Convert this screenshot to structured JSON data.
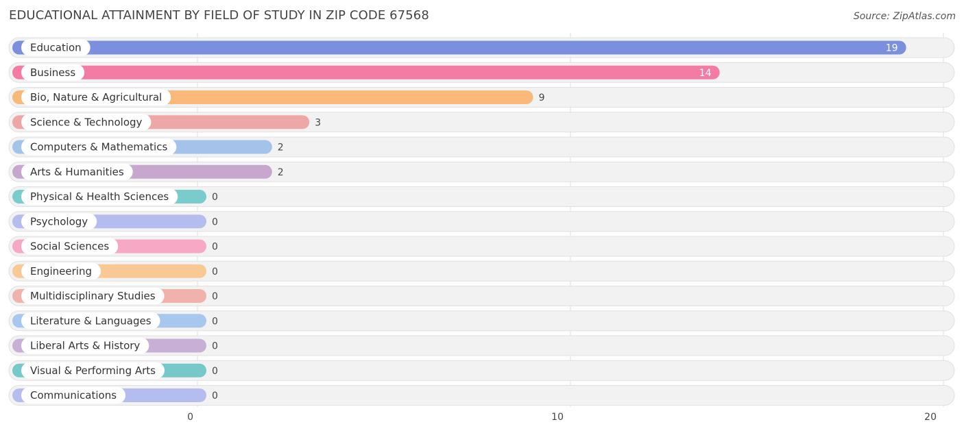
{
  "header": {
    "title": "EDUCATIONAL ATTAINMENT BY FIELD OF STUDY IN ZIP CODE 67568",
    "source": "Source: ZipAtlas.com"
  },
  "chart_data": {
    "type": "bar",
    "orientation": "horizontal",
    "title": "EDUCATIONAL ATTAINMENT BY FIELD OF STUDY IN ZIP CODE 67568",
    "xlabel": "",
    "ylabel": "",
    "xlim": [
      0,
      20
    ],
    "ticks": [
      0,
      10,
      20
    ],
    "grid": true,
    "categories": [
      "Education",
      "Business",
      "Bio, Nature & Agricultural",
      "Science & Technology",
      "Computers & Mathematics",
      "Arts & Humanities",
      "Physical & Health Sciences",
      "Psychology",
      "Social Sciences",
      "Engineering",
      "Multidisciplinary Studies",
      "Literature & Languages",
      "Liberal Arts & History",
      "Visual & Performing Arts",
      "Communications"
    ],
    "values": [
      19,
      14,
      9,
      3,
      2,
      2,
      0,
      0,
      0,
      0,
      0,
      0,
      0,
      0,
      0
    ],
    "colors": [
      "#7b8fdc",
      "#f47ba3",
      "#f9b97a",
      "#eea7a7",
      "#a3c3ea",
      "#c8a7cf",
      "#7acbcb",
      "#b5bdee",
      "#f7a8c4",
      "#f9c995",
      "#f2b2ac",
      "#a8c7ee",
      "#c8afd6",
      "#77c8c8",
      "#b5bdee"
    ]
  }
}
